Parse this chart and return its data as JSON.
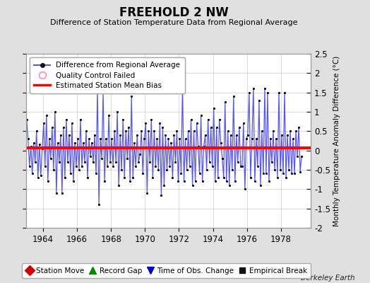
{
  "title": "FREEHOLD 2 NW",
  "subtitle": "Difference of Station Temperature Data from Regional Average",
  "ylabel": "Monthly Temperature Anomaly Difference (°C)",
  "xlabel_credit": "Berkeley Earth",
  "ylim": [
    -2.0,
    2.5
  ],
  "xlim": [
    1963.0,
    1979.75
  ],
  "xticks": [
    1964,
    1966,
    1968,
    1970,
    1972,
    1974,
    1976,
    1978
  ],
  "yticks": [
    -2.0,
    -1.5,
    -1.0,
    -0.5,
    0.0,
    0.5,
    1.0,
    1.5,
    2.0,
    2.5
  ],
  "yticklabels": [
    "-2",
    "-1.5",
    "-1",
    "-0.5",
    "0",
    "0.5",
    "1",
    "1.5",
    "2",
    "2.5"
  ],
  "bias_line": 0.07,
  "bias_color": "#ff0000",
  "line_color": "#5555ff",
  "line_color_light": "#aaaaff",
  "dot_color": "#000000",
  "background_color": "#e0e0e0",
  "plot_bg_color": "#ffffff",
  "data_x": [
    1963.042,
    1963.125,
    1963.208,
    1963.292,
    1963.375,
    1963.458,
    1963.542,
    1963.625,
    1963.708,
    1963.792,
    1963.875,
    1963.958,
    1964.042,
    1964.125,
    1964.208,
    1964.292,
    1964.375,
    1964.458,
    1964.542,
    1964.625,
    1964.708,
    1964.792,
    1964.875,
    1964.958,
    1965.042,
    1965.125,
    1965.208,
    1965.292,
    1965.375,
    1965.458,
    1965.542,
    1965.625,
    1965.708,
    1965.792,
    1965.875,
    1965.958,
    1966.042,
    1966.125,
    1966.208,
    1966.292,
    1966.375,
    1966.458,
    1966.542,
    1966.625,
    1966.708,
    1966.792,
    1966.875,
    1966.958,
    1967.042,
    1967.125,
    1967.208,
    1967.292,
    1967.375,
    1967.458,
    1967.542,
    1967.625,
    1967.708,
    1967.792,
    1967.875,
    1967.958,
    1968.042,
    1968.125,
    1968.208,
    1968.292,
    1968.375,
    1968.458,
    1968.542,
    1968.625,
    1968.708,
    1968.792,
    1968.875,
    1968.958,
    1969.042,
    1969.125,
    1969.208,
    1969.292,
    1969.375,
    1969.458,
    1969.542,
    1969.625,
    1969.708,
    1969.792,
    1969.875,
    1969.958,
    1970.042,
    1970.125,
    1970.208,
    1970.292,
    1970.375,
    1970.458,
    1970.542,
    1970.625,
    1970.708,
    1970.792,
    1970.875,
    1970.958,
    1971.042,
    1971.125,
    1971.208,
    1971.292,
    1971.375,
    1971.458,
    1971.542,
    1971.625,
    1971.708,
    1971.792,
    1971.875,
    1971.958,
    1972.042,
    1972.125,
    1972.208,
    1972.292,
    1972.375,
    1972.458,
    1972.542,
    1972.625,
    1972.708,
    1972.792,
    1972.875,
    1972.958,
    1973.042,
    1973.125,
    1973.208,
    1973.292,
    1973.375,
    1973.458,
    1973.542,
    1973.625,
    1973.708,
    1973.792,
    1973.875,
    1973.958,
    1974.042,
    1974.125,
    1974.208,
    1974.292,
    1974.375,
    1974.458,
    1974.542,
    1974.625,
    1974.708,
    1974.792,
    1974.875,
    1974.958,
    1975.042,
    1975.125,
    1975.208,
    1975.292,
    1975.375,
    1975.458,
    1975.542,
    1975.625,
    1975.708,
    1975.792,
    1975.875,
    1975.958,
    1976.042,
    1976.125,
    1976.208,
    1976.292,
    1976.375,
    1976.458,
    1976.542,
    1976.625,
    1976.708,
    1976.792,
    1976.875,
    1976.958,
    1977.042,
    1977.125,
    1977.208,
    1977.292,
    1977.375,
    1977.458,
    1977.542,
    1977.625,
    1977.708,
    1977.792,
    1977.875,
    1977.958,
    1978.042,
    1978.125,
    1978.208,
    1978.292,
    1978.375,
    1978.458,
    1978.542,
    1978.625,
    1978.708,
    1978.792,
    1978.875,
    1978.958,
    1979.042,
    1979.125,
    1979.208
  ],
  "data_y": [
    0.8,
    0.3,
    -0.4,
    0.1,
    -0.6,
    0.2,
    -0.3,
    0.5,
    -0.7,
    0.15,
    -0.65,
    0.05,
    0.7,
    -0.4,
    0.9,
    -0.8,
    0.3,
    -0.2,
    0.6,
    -0.5,
    1.0,
    -1.1,
    0.2,
    -0.3,
    0.4,
    -1.1,
    0.6,
    -0.7,
    0.8,
    -0.3,
    0.4,
    -0.6,
    0.7,
    -0.8,
    0.2,
    -0.4,
    0.3,
    -0.5,
    0.8,
    -0.4,
    0.2,
    -0.3,
    0.5,
    -0.7,
    0.3,
    -0.15,
    0.2,
    -0.3,
    0.4,
    -0.6,
    1.6,
    -1.4,
    0.3,
    -0.2,
    1.5,
    -0.8,
    0.3,
    -0.4,
    0.9,
    -0.3,
    0.3,
    -0.4,
    0.5,
    -0.3,
    1.0,
    -0.9,
    0.4,
    -0.5,
    0.8,
    -0.7,
    0.5,
    -0.2,
    0.6,
    -0.8,
    1.4,
    -0.7,
    0.2,
    -0.4,
    0.4,
    -0.3,
    -0.1,
    0.5,
    -0.6,
    0.3,
    0.7,
    -1.1,
    0.5,
    -0.3,
    0.8,
    -0.7,
    0.5,
    -0.4,
    0.3,
    -0.5,
    0.7,
    -1.15,
    0.6,
    -0.9,
    0.4,
    -0.5,
    0.3,
    -0.4,
    0.2,
    -0.7,
    0.4,
    -0.3,
    0.5,
    -0.8,
    0.3,
    -0.6,
    1.7,
    -0.8,
    0.3,
    -0.5,
    0.5,
    -0.4,
    0.8,
    -0.9,
    0.5,
    -0.8,
    0.7,
    0.1,
    -0.6,
    0.9,
    -0.8,
    0.1,
    0.4,
    -0.5,
    0.8,
    -0.3,
    0.6,
    -0.4,
    1.1,
    -0.8,
    0.6,
    -0.7,
    0.8,
    0.2,
    -0.2,
    -0.7,
    1.25,
    -0.8,
    0.5,
    -0.9,
    0.4,
    -0.5,
    1.4,
    -0.8,
    0.4,
    -0.3,
    0.6,
    -0.4,
    -0.4,
    0.7,
    -1.0,
    0.3,
    0.4,
    1.5,
    -0.7,
    0.3,
    1.6,
    -0.8,
    0.3,
    -0.4,
    1.3,
    -0.9,
    0.5,
    -0.6,
    1.6,
    -0.6,
    1.5,
    -0.8,
    0.3,
    -0.3,
    0.5,
    -0.5,
    0.3,
    -0.7,
    1.5,
    -0.5,
    0.4,
    -0.6,
    1.5,
    -0.7,
    0.4,
    -0.5,
    0.5,
    -0.6,
    0.3,
    -0.6,
    0.5,
    -0.15,
    0.6,
    -0.55,
    -0.15
  ]
}
